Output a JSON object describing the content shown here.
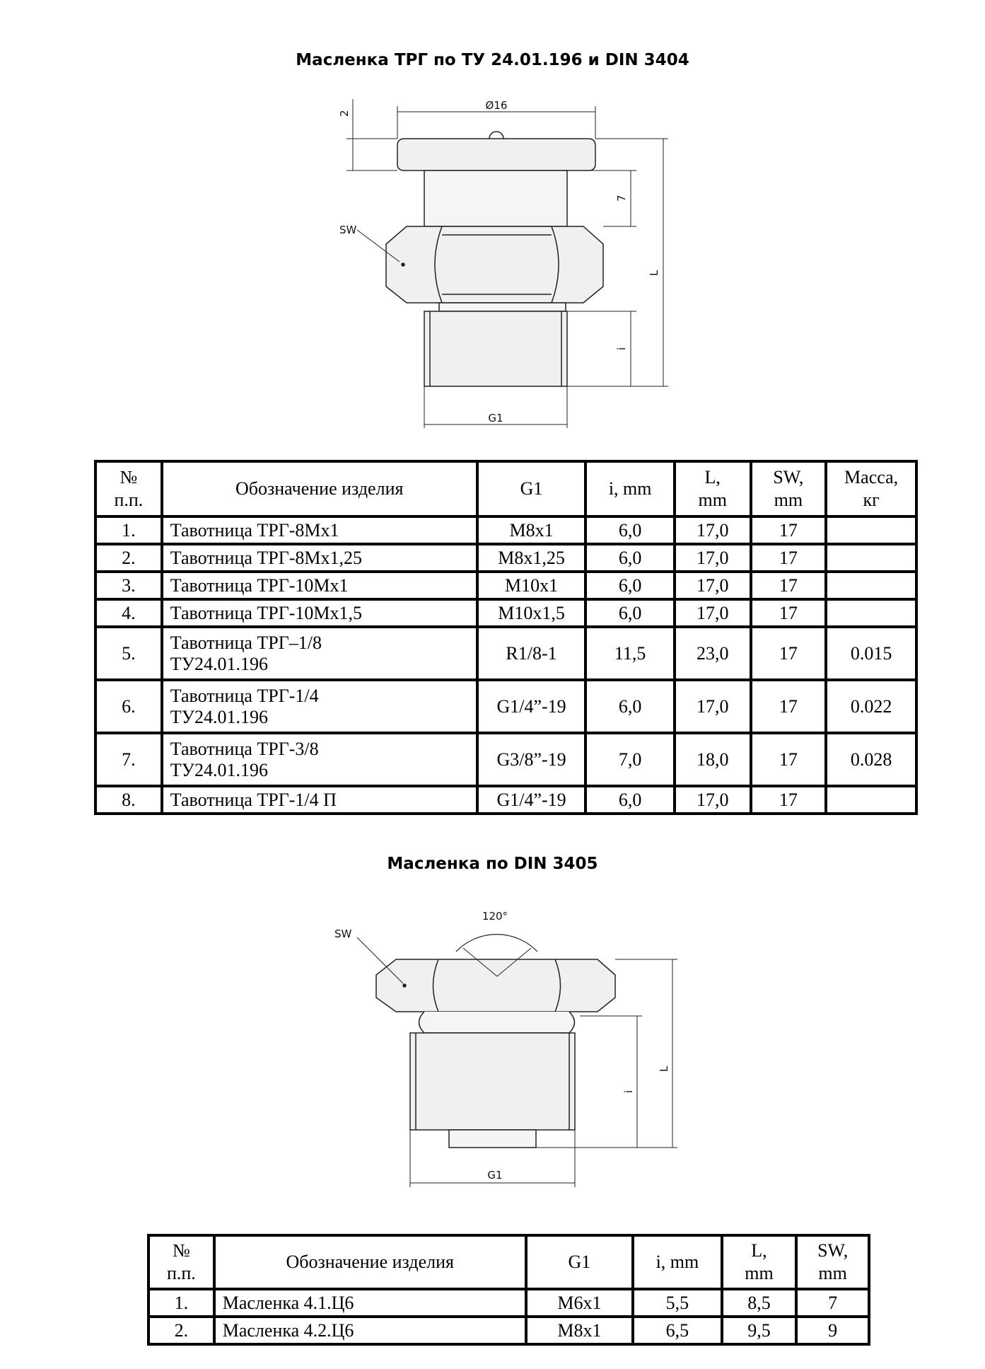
{
  "section1": {
    "title": "Масленка ТРГ по ТУ 24.01.196 и DIN 3404",
    "drawing_labels": {
      "diameter": "Ø16",
      "cap": "2",
      "stem": "7",
      "sw": "SW",
      "length": "L",
      "thread_len": "i",
      "thread": "G1"
    },
    "table": {
      "headers": [
        "№ п.п.",
        "Обозначение изделия",
        "G1",
        "i, mm",
        "L, mm",
        "SW, mm",
        "Масса, кг"
      ],
      "header_lines": [
        [
          "№",
          "п.п."
        ],
        [
          "Обозначение изделия"
        ],
        [
          "G1"
        ],
        [
          "i, mm"
        ],
        [
          "L,",
          "mm"
        ],
        [
          "SW,",
          "mm"
        ],
        [
          "Масса,",
          "кг"
        ]
      ],
      "rows": [
        {
          "n": "1.",
          "name": [
            "Тавотница ТРГ-8Mx1"
          ],
          "g1": "M8x1",
          "i": "6,0",
          "l": "17,0",
          "sw": "17",
          "mass": ""
        },
        {
          "n": "2.",
          "name": [
            "Тавотница ТРГ-8Mx1,25"
          ],
          "g1": "M8x1,25",
          "i": "6,0",
          "l": "17,0",
          "sw": "17",
          "mass": ""
        },
        {
          "n": "3.",
          "name": [
            "Тавотница ТРГ-10Mx1"
          ],
          "g1": "M10x1",
          "i": "6,0",
          "l": "17,0",
          "sw": "17",
          "mass": ""
        },
        {
          "n": "4.",
          "name": [
            "Тавотница ТРГ-10Mx1,5"
          ],
          "g1": "M10x1,5",
          "i": "6,0",
          "l": "17,0",
          "sw": "17",
          "mass": ""
        },
        {
          "n": "5.",
          "name": [
            "Тавотница ТРГ–1/8",
            "ТУ24.01.196"
          ],
          "g1": "R1/8-1",
          "i": "11,5",
          "l": "23,0",
          "sw": "17",
          "mass": "0.015"
        },
        {
          "n": "6.",
          "name": [
            "Тавотница ТРГ-1/4",
            "ТУ24.01.196"
          ],
          "g1": "G1/4”-19",
          "i": "6,0",
          "l": "17,0",
          "sw": "17",
          "mass": "0.022"
        },
        {
          "n": "7.",
          "name": [
            "Тавотница ТРГ-3/8",
            "ТУ24.01.196"
          ],
          "g1": "G3/8”-19",
          "i": "7,0",
          "l": "18,0",
          "sw": "17",
          "mass": "0.028"
        },
        {
          "n": "8.",
          "name": [
            "Тавотница ТРГ-1/4 П"
          ],
          "g1": "G1/4”-19",
          "i": "6,0",
          "l": "17,0",
          "sw": "17",
          "mass": ""
        }
      ]
    }
  },
  "section2": {
    "title": "Масленка по DIN 3405",
    "drawing_labels": {
      "angle": "120°",
      "sw": "SW",
      "length": "L",
      "thread_len": "i",
      "thread": "G1"
    },
    "table": {
      "header_lines": [
        [
          "№",
          "п.п."
        ],
        [
          "Обозначение изделия"
        ],
        [
          "G1"
        ],
        [
          "i, mm"
        ],
        [
          "L,",
          "mm"
        ],
        [
          "SW,",
          "mm"
        ]
      ],
      "rows": [
        {
          "n": "1.",
          "name": [
            "Масленка 4.1.Ц6"
          ],
          "g1": "M6x1",
          "i": "5,5",
          "l": "8,5",
          "sw": "7"
        },
        {
          "n": "2.",
          "name": [
            "Масленка 4.2.Ц6"
          ],
          "g1": "M8x1",
          "i": "6,5",
          "l": "9,5",
          "sw": "9"
        }
      ]
    }
  }
}
